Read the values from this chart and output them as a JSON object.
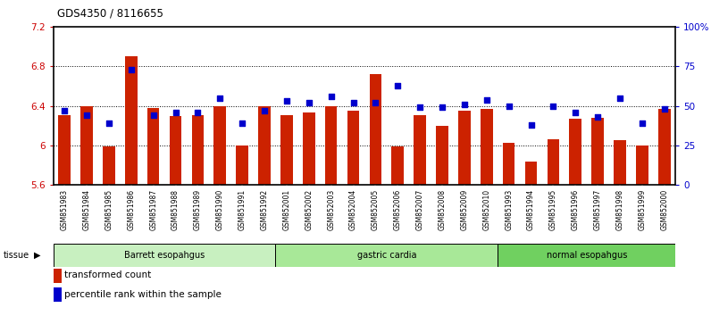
{
  "title": "GDS4350 / 8116655",
  "samples": [
    "GSM851983",
    "GSM851984",
    "GSM851985",
    "GSM851986",
    "GSM851987",
    "GSM851988",
    "GSM851989",
    "GSM851990",
    "GSM851991",
    "GSM851992",
    "GSM852001",
    "GSM852002",
    "GSM852003",
    "GSM852004",
    "GSM852005",
    "GSM852006",
    "GSM852007",
    "GSM852008",
    "GSM852009",
    "GSM852010",
    "GSM851993",
    "GSM851994",
    "GSM851995",
    "GSM851996",
    "GSM851997",
    "GSM851998",
    "GSM851999",
    "GSM852000"
  ],
  "bar_values": [
    6.31,
    6.4,
    5.99,
    6.9,
    6.38,
    6.3,
    6.31,
    6.4,
    6.0,
    6.4,
    6.31,
    6.33,
    6.4,
    6.35,
    6.72,
    5.99,
    6.31,
    6.2,
    6.35,
    6.37,
    6.03,
    5.84,
    6.06,
    6.27,
    6.28,
    6.05,
    6.0,
    6.37
  ],
  "percentile_values": [
    47,
    44,
    39,
    73,
    44,
    46,
    46,
    55,
    39,
    47,
    53,
    52,
    56,
    52,
    52,
    63,
    49,
    49,
    51,
    54,
    50,
    38,
    50,
    46,
    43,
    55,
    39,
    48
  ],
  "ylim_left": [
    5.6,
    7.2
  ],
  "ylim_right": [
    0,
    100
  ],
  "yticks_left": [
    5.6,
    6.0,
    6.4,
    6.8,
    7.2
  ],
  "yticks_right": [
    0,
    25,
    50,
    75,
    100
  ],
  "ytick_labels_left": [
    "5.6",
    "6",
    "6.4",
    "6.8",
    "7.2"
  ],
  "ytick_labels_right": [
    "0",
    "25",
    "50",
    "75",
    "100%"
  ],
  "bar_color": "#cc2200",
  "dot_color": "#0000cc",
  "grid_color": "#000000",
  "background_color": "#ffffff",
  "group_labels": [
    "Barrett esopahgus",
    "gastric cardia",
    "normal esopahgus"
  ],
  "group_ranges": [
    [
      0,
      10
    ],
    [
      10,
      20
    ],
    [
      20,
      28
    ]
  ],
  "group_colors": [
    "#c8f0c0",
    "#a8e898",
    "#70d060"
  ],
  "tissue_label": "tissue",
  "legend_bar_label": "transformed count",
  "legend_dot_label": "percentile rank within the sample",
  "bar_width": 0.55
}
